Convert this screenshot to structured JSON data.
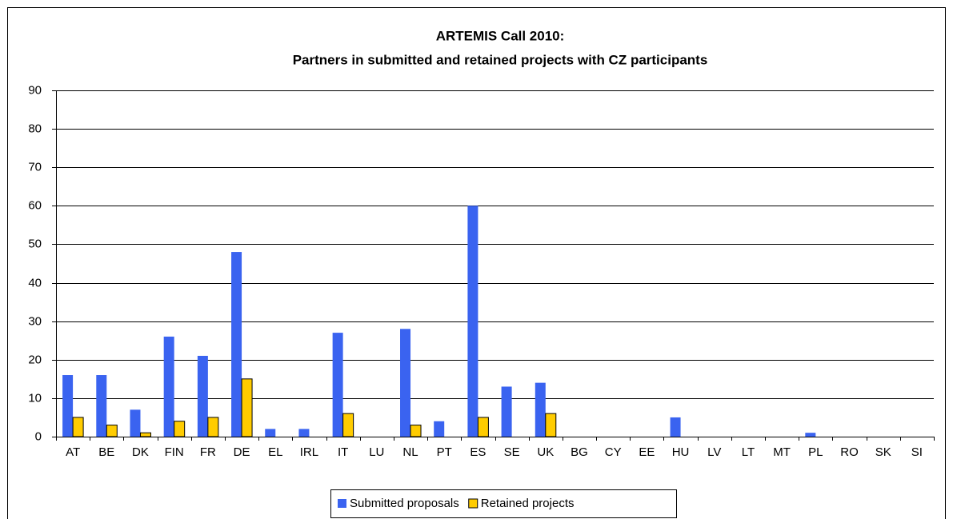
{
  "chart_data": {
    "type": "bar",
    "title": "ARTEMIS Call 2010:",
    "subtitle": "Partners in submitted and retained projects with CZ participants",
    "categories": [
      "AT",
      "BE",
      "DK",
      "FIN",
      "FR",
      "DE",
      "EL",
      "IRL",
      "IT",
      "LU",
      "NL",
      "PT",
      "ES",
      "SE",
      "UK",
      "BG",
      "CY",
      "EE",
      "HU",
      "LV",
      "LT",
      "MT",
      "PL",
      "RO",
      "SK",
      "SI"
    ],
    "series": [
      {
        "name": "Submitted proposals",
        "color": "#3a63f0",
        "values": [
          16,
          16,
          7,
          26,
          21,
          48,
          2,
          2,
          27,
          0,
          28,
          4,
          60,
          13,
          14,
          0,
          0,
          0,
          5,
          0,
          0,
          0,
          1,
          0,
          0,
          0
        ]
      },
      {
        "name": "Retained projects",
        "color": "#ffcc00",
        "values": [
          5,
          3,
          1,
          4,
          5,
          15,
          0,
          0,
          6,
          0,
          3,
          0,
          5,
          0,
          6,
          0,
          0,
          0,
          0,
          0,
          0,
          0,
          0,
          0,
          0,
          0
        ]
      }
    ],
    "ylim": [
      0,
      90
    ],
    "yticks": [
      0,
      10,
      20,
      30,
      40,
      50,
      60,
      70,
      80,
      90
    ],
    "grid": true,
    "legend": "bottom"
  }
}
